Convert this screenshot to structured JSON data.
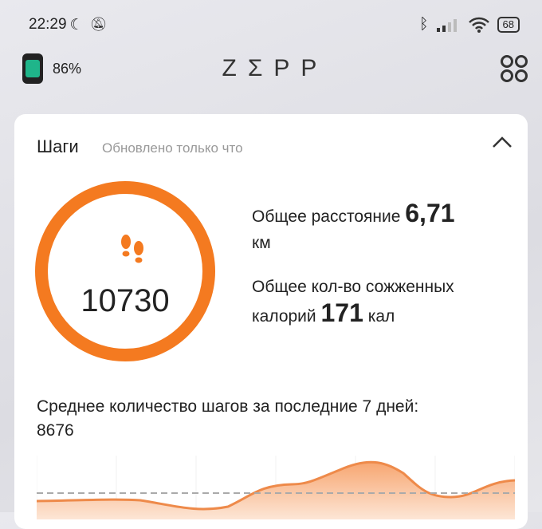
{
  "status_bar": {
    "time": "22:29",
    "battery": "68",
    "icons": [
      "moon-icon",
      "bell-off-icon",
      "bluetooth-icon",
      "signal-icon",
      "wifi-icon",
      "battery-icon"
    ]
  },
  "header": {
    "device_battery": "86%",
    "logo": "ZΣPP",
    "menu_icon": "apps-icon"
  },
  "steps_card": {
    "title": "Шаги",
    "updated": "Обновлено только что",
    "steps": "10730",
    "distance_label": "Общее расстояние",
    "distance_value": "6,71",
    "distance_unit": "км",
    "calories_label_1": "Общее кол-во сожженных",
    "calories_label_2": "калорий",
    "calories_value": "171",
    "calories_unit": "кал",
    "average_label": "Среднее количество шагов за последние 7 дней:",
    "average_value": "8676",
    "accent": "#f47a20"
  }
}
